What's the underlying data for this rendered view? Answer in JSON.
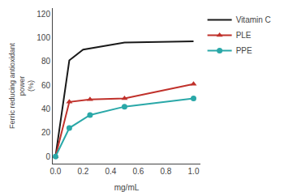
{
  "chart_data": {
    "type": "line",
    "xlabel": "mg/mL",
    "ylabel": "Ferric reducing antioxidant\npower\n(%)",
    "series": [
      {
        "name": "Vitamin C",
        "color": "#1a1a1a",
        "marker": "none",
        "x": [
          0.0,
          0.1,
          0.2,
          0.5,
          1.0
        ],
        "values": [
          0.0,
          81.0,
          90.0,
          96.0,
          97.0
        ]
      },
      {
        "name": "PLE",
        "color": "#c0312b",
        "marker": "triangle",
        "x": [
          0.0,
          0.1,
          0.25,
          0.5,
          1.0
        ],
        "values": [
          0.0,
          46.0,
          48.0,
          49.0,
          61.0
        ]
      },
      {
        "name": "PPE",
        "color": "#2aa8a8",
        "marker": "circle",
        "x": [
          0.0,
          0.1,
          0.25,
          0.5,
          1.0
        ],
        "values": [
          0.0,
          24.0,
          35.0,
          42.0,
          49.0
        ]
      }
    ],
    "xlim": [
      -0.02,
      1.05
    ],
    "ylim": [
      -6,
      125
    ],
    "xticks": [
      {
        "value": 0.0,
        "label": "0.0"
      },
      0.2,
      0.4,
      0.6,
      0.8,
      {
        "value": 1.0,
        "label": "1.0"
      }
    ],
    "yticks": [
      0,
      20,
      40,
      60,
      80,
      100,
      120
    ],
    "grid": false,
    "legend": "right"
  }
}
